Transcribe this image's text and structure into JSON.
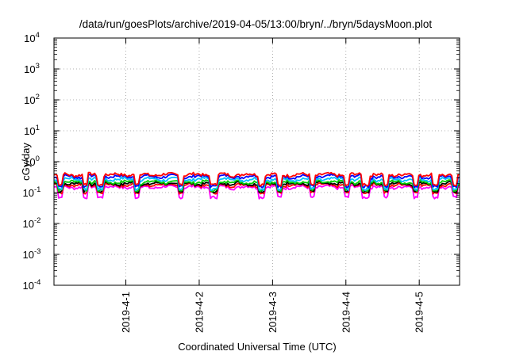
{
  "chart_data": {
    "type": "line",
    "title": "/data/run/goesPlots/archive/2019-04-05/13:00/bryn/../bryn/5daysMoon.plot",
    "xlabel": "Coordinated Universal Time (UTC)",
    "ylabel": "cGy/day",
    "yscale": "log",
    "ylim": [
      0.0001,
      10000
    ],
    "y_ticks": [
      {
        "value": 0.0001,
        "base": "10",
        "exp": "-4"
      },
      {
        "value": 0.001,
        "base": "10",
        "exp": "-3"
      },
      {
        "value": 0.01,
        "base": "10",
        "exp": "-2"
      },
      {
        "value": 0.1,
        "base": "10",
        "exp": "-1"
      },
      {
        "value": 1,
        "base": "10",
        "exp": "0"
      },
      {
        "value": 10,
        "base": "10",
        "exp": "1"
      },
      {
        "value": 100,
        "base": "10",
        "exp": "2"
      },
      {
        "value": 1000,
        "base": "10",
        "exp": "3"
      },
      {
        "value": 10000,
        "base": "10",
        "exp": "4"
      }
    ],
    "xlim": [
      2019.0331,
      2019.0387
    ],
    "x_ticks": [
      "2019-4-1",
      "2019-4-2",
      "2019-4-3",
      "2019-4-4",
      "2019-4-5"
    ],
    "x_range_days": [
      -0.98,
      4.55
    ],
    "grid": true,
    "series": [
      {
        "color": "#ff0000",
        "level": 0.38,
        "dip_level": 0.18
      },
      {
        "color": "#0000ff",
        "level": 0.33,
        "dip_level": 0.16
      },
      {
        "color": "#00bfff",
        "level": 0.27,
        "dip_level": 0.13
      },
      {
        "color": "#00cc00",
        "level": 0.22,
        "dip_level": 0.12
      },
      {
        "color": "#000000",
        "level": 0.195,
        "dip_level": 0.11
      },
      {
        "color": "#ff0000",
        "level": 0.175,
        "dip_level": 0.1
      },
      {
        "color": "#ff00ff",
        "level": 0.15,
        "dip_level": 0.07
      }
    ],
    "dips_days": [
      -0.9,
      -0.55,
      -0.35,
      0.15,
      0.75,
      1.17,
      1.22,
      1.85,
      2.1,
      2.55,
      3.02,
      3.25,
      3.28,
      3.55,
      3.95,
      4.22,
      4.48
    ]
  }
}
